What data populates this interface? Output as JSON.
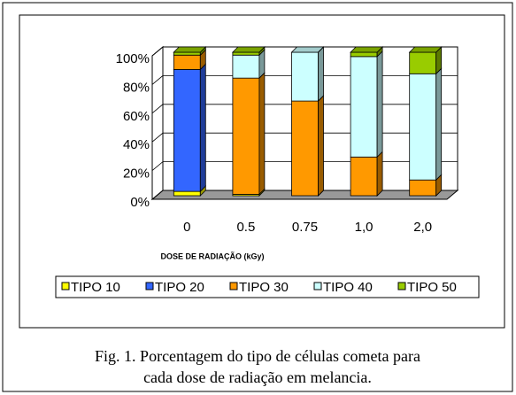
{
  "chart_data": {
    "type": "bar3d_stacked",
    "x_label": "DOSE DE RADIAÇÃO (kGy)",
    "categories": [
      "0",
      "0.5",
      "0.75",
      "1,0",
      "2,0"
    ],
    "series": [
      {
        "name": "TIPO 10",
        "color": "#ffff00",
        "values": [
          3,
          1,
          0,
          0,
          0
        ]
      },
      {
        "name": "TIPO 20",
        "color": "#3366ff",
        "values": [
          85,
          0,
          0,
          0,
          0
        ]
      },
      {
        "name": "TIPO 30",
        "color": "#ff9900",
        "values": [
          10,
          81,
          66,
          27,
          11
        ]
      },
      {
        "name": "TIPO 40",
        "color": "#ccffff",
        "values": [
          0,
          16,
          34,
          70,
          74
        ]
      },
      {
        "name": "TIPO 50",
        "color": "#99cc00",
        "values": [
          2,
          2,
          0,
          3,
          15
        ]
      }
    ],
    "ylim": [
      0,
      100
    ],
    "yticks": [
      {
        "value": 0,
        "label": "0%"
      },
      {
        "value": 20,
        "label": "20%"
      },
      {
        "value": 40,
        "label": "40%"
      },
      {
        "value": 60,
        "label": "60%"
      },
      {
        "value": 80,
        "label": "80%"
      },
      {
        "value": 100,
        "label": "100%"
      }
    ],
    "grid": true,
    "legend": "bottom"
  },
  "caption": [
    "Fig. 1. Porcentagem do tipo de células cometa para",
    "cada dose de radiação em melancia."
  ]
}
